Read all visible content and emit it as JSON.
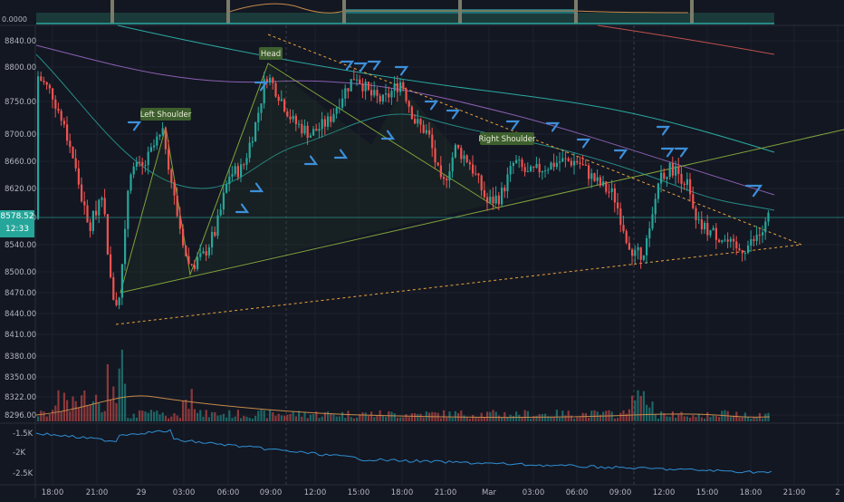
{
  "colors": {
    "background": "#131722",
    "grid": "#1e222d",
    "up": "#26a69a",
    "down": "#ef5350",
    "arrow": "#3d8fd9",
    "pattern_line": "#7fa33a",
    "dashed": "#e9a23b",
    "ma_teal": "#2aa9a0",
    "ma_purple": "#8a5fb0",
    "ma_red": "#c0504d",
    "osc_line": "#2f8fd4",
    "label_bg": "#3e5f2e"
  },
  "price_axis": {
    "ticks": [
      "8840.00",
      "8800.00",
      "8750.00",
      "8700.00",
      "8660.00",
      "8620.00",
      "8580.00",
      "8540.00",
      "8500.00",
      "8470.00",
      "8440.00",
      "8410.00",
      "8380.00",
      "8350.00",
      "8322.00",
      "8296.00"
    ],
    "current_price": "8578.52",
    "countdown": "12:33"
  },
  "top_pane": {
    "value_label": "0.0000"
  },
  "oscillator_axis": {
    "ticks": [
      "-1.5K",
      "-2K",
      "-2.5K"
    ]
  },
  "time_axis": {
    "ticks": [
      "18:00",
      "21:00",
      "29",
      "03:00",
      "06:00",
      "09:00",
      "12:00",
      "15:00",
      "18:00",
      "21:00",
      "Mar",
      "03:00",
      "06:00",
      "09:00",
      "12:00",
      "15:00",
      "18:00",
      "21:00",
      "2"
    ]
  },
  "annotations": {
    "left_shoulder": "Left Shoulder",
    "head": "Head",
    "right_shoulder": "Right Shoulder"
  },
  "chart_data": {
    "type": "candlestick",
    "price_range": [
      8410,
      8860
    ],
    "candles_approx": [
      {
        "time": "17:00",
        "close": 8780
      },
      {
        "time": "19:00",
        "close": 8690
      },
      {
        "time": "21:00",
        "close": 8560
      },
      {
        "time": "22:00",
        "close": 8440
      },
      {
        "time": "23:00",
        "close": 8640
      },
      {
        "time": "00:00",
        "close": 8690
      },
      {
        "time": "01:00",
        "close": 8640
      },
      {
        "time": "02:00",
        "close": 8720
      },
      {
        "time": "03:00",
        "close": 8500
      },
      {
        "time": "05:00",
        "close": 8560
      },
      {
        "time": "07:00",
        "close": 8650
      },
      {
        "time": "08:00",
        "close": 8740
      },
      {
        "time": "09:00",
        "close": 8800
      },
      {
        "time": "11:00",
        "close": 8720
      },
      {
        "time": "13:00",
        "close": 8740
      },
      {
        "time": "15:00",
        "close": 8780
      },
      {
        "time": "17:00",
        "close": 8770
      },
      {
        "time": "19:00",
        "close": 8690
      },
      {
        "time": "21:00",
        "close": 8640
      },
      {
        "time": "23:00",
        "close": 8620
      },
      {
        "time": "01:00",
        "close": 8660
      },
      {
        "time": "03:00",
        "close": 8650
      },
      {
        "time": "05:00",
        "close": 8660
      },
      {
        "time": "07:00",
        "close": 8620
      },
      {
        "time": "09:00",
        "close": 8520
      },
      {
        "time": "10:00",
        "close": 8560
      },
      {
        "time": "11:00",
        "close": 8650
      },
      {
        "time": "13:00",
        "close": 8640
      },
      {
        "time": "15:00",
        "close": 8560
      },
      {
        "time": "17:00",
        "close": 8550
      },
      {
        "time": "19:00",
        "close": 8578.52
      }
    ],
    "volume_range": [
      0,
      1
    ]
  }
}
